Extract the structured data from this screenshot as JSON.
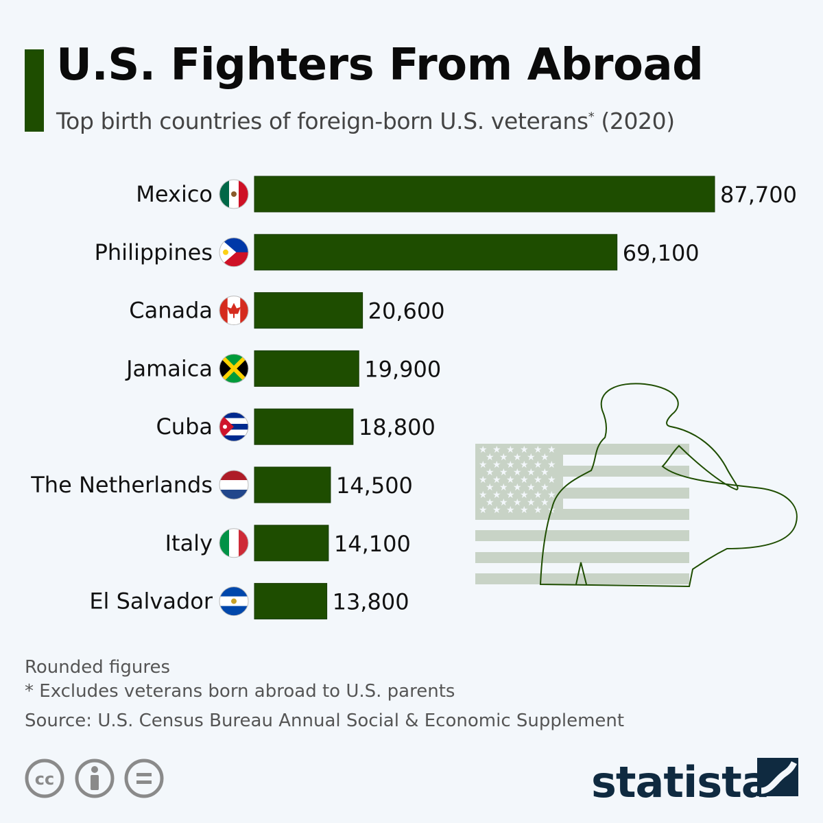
{
  "title": "U.S. Fighters From Abroad",
  "subtitle_main": "Top birth countries of foreign-born U.S. veterans",
  "subtitle_star": "*",
  "subtitle_year": " (2020)",
  "footnotes": {
    "rounded": "Rounded figures",
    "exclusion": "* Excludes veterans born abroad to U.S. parents",
    "source": "Source: U.S. Census Bureau Annual Social & Economic Supplement"
  },
  "brand": "statista",
  "colors": {
    "bar": "#1e4d00",
    "accent": "#1e4d00",
    "background": "#f3f7fb",
    "brand": "#0f2a40"
  },
  "icons": [
    "cc-icon",
    "attribution-icon",
    "no-derivatives-icon",
    "statista-logo-icon",
    "soldier-salute-illustration",
    "us-flag-illustration"
  ],
  "chart_data": {
    "type": "bar",
    "orientation": "horizontal",
    "categories": [
      "Mexico",
      "Philippines",
      "Canada",
      "Jamaica",
      "Cuba",
      "The Netherlands",
      "Italy",
      "El Salvador"
    ],
    "values": [
      87700,
      69100,
      20600,
      19900,
      18800,
      14500,
      14100,
      13800
    ],
    "value_labels": [
      "87,700",
      "69,100",
      "20,600",
      "19,900",
      "18,800",
      "14,500",
      "14,100",
      "13,800"
    ],
    "flags": [
      "mexico-flag-icon",
      "philippines-flag-icon",
      "canada-flag-icon",
      "jamaica-flag-icon",
      "cuba-flag-icon",
      "netherlands-flag-icon",
      "italy-flag-icon",
      "el-salvador-flag-icon"
    ],
    "xlim": [
      0,
      87700
    ],
    "grid": false,
    "legend": "none"
  }
}
